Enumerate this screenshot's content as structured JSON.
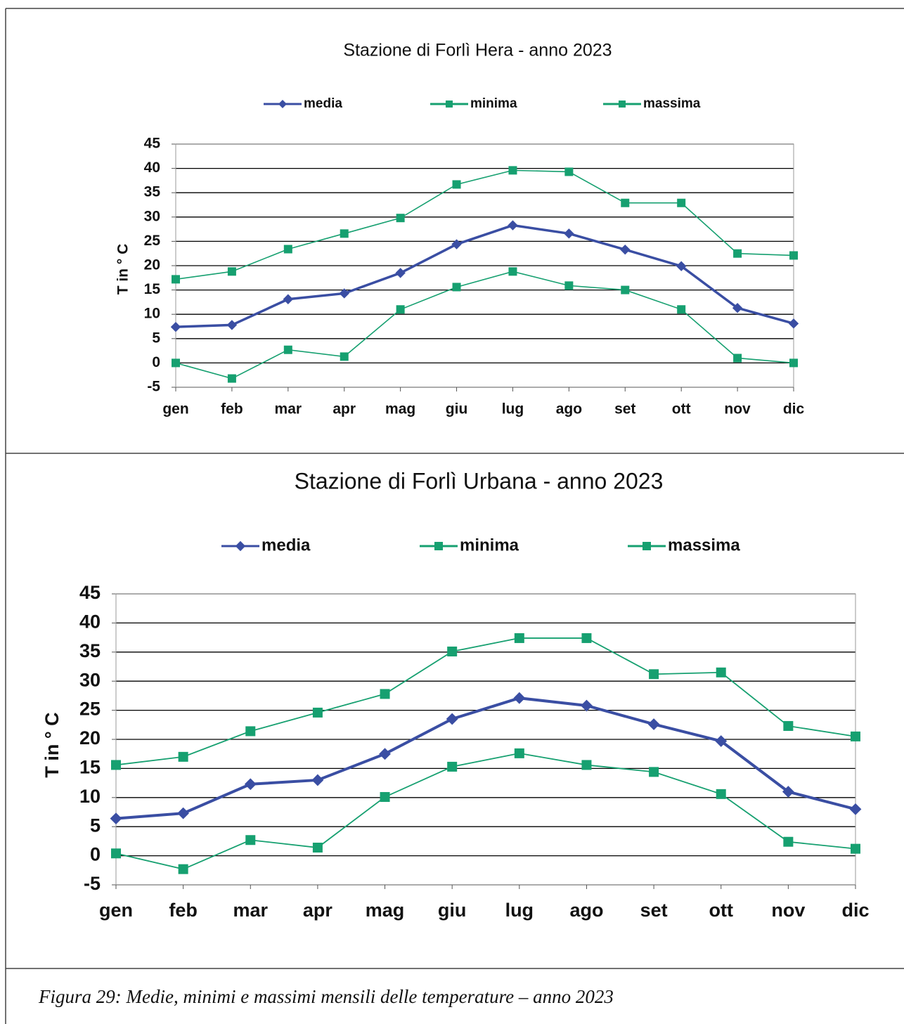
{
  "chart_data": [
    {
      "type": "line",
      "title": "Stazione di Forlì Hera - anno 2023",
      "y_label": "T in ° C",
      "categories": [
        "gen",
        "feb",
        "mar",
        "apr",
        "mag",
        "giu",
        "lug",
        "ago",
        "set",
        "ott",
        "nov",
        "dic"
      ],
      "series": [
        {
          "name": "media",
          "color": "#3a4ea3",
          "marker": "diamond",
          "values": [
            7.4,
            7.8,
            13.1,
            14.3,
            18.5,
            24.4,
            28.3,
            26.6,
            23.3,
            19.9,
            11.3,
            8.1
          ]
        },
        {
          "name": "minima",
          "color": "#16a070",
          "marker": "square",
          "values": [
            0,
            -3.2,
            2.7,
            1.3,
            11,
            15.6,
            18.8,
            15.9,
            15,
            11,
            1,
            0
          ]
        },
        {
          "name": "massima",
          "color": "#16a070",
          "marker": "square",
          "values": [
            17.2,
            18.8,
            23.4,
            26.6,
            29.8,
            36.7,
            39.6,
            39.3,
            32.9,
            32.9,
            22.5,
            22.1
          ]
        }
      ],
      "ylim": [
        -5,
        45
      ],
      "yticks": [
        -5,
        0,
        5,
        10,
        15,
        20,
        25,
        30,
        35,
        40,
        45
      ],
      "grid": true,
      "legend": "top"
    },
    {
      "type": "line",
      "title": "Stazione di  Forlì Urbana - anno 2023",
      "y_label": "T in ° C",
      "categories": [
        "gen",
        "feb",
        "mar",
        "apr",
        "mag",
        "giu",
        "lug",
        "ago",
        "set",
        "ott",
        "nov",
        "dic"
      ],
      "series": [
        {
          "name": "media",
          "color": "#3a4ea3",
          "marker": "diamond",
          "values": [
            6.4,
            7.3,
            12.3,
            13,
            17.5,
            23.5,
            27.1,
            25.8,
            22.6,
            19.7,
            11,
            8
          ]
        },
        {
          "name": "minima",
          "color": "#16a070",
          "marker": "square",
          "values": [
            0.4,
            -2.3,
            2.7,
            1.4,
            10.1,
            15.3,
            17.6,
            15.6,
            14.4,
            10.6,
            2.4,
            1.2
          ]
        },
        {
          "name": "massima",
          "color": "#16a070",
          "marker": "square",
          "values": [
            15.6,
            17,
            21.4,
            24.6,
            27.8,
            35.1,
            37.4,
            37.4,
            31.2,
            31.5,
            22.3,
            20.5
          ]
        }
      ],
      "ylim": [
        -5,
        45
      ],
      "yticks": [
        -5,
        0,
        5,
        10,
        15,
        20,
        25,
        30,
        35,
        40,
        45
      ],
      "grid": true,
      "legend": "top"
    }
  ],
  "caption": "Figura 29: Medie, minimi e massimi mensili delle temperature – anno 2023"
}
